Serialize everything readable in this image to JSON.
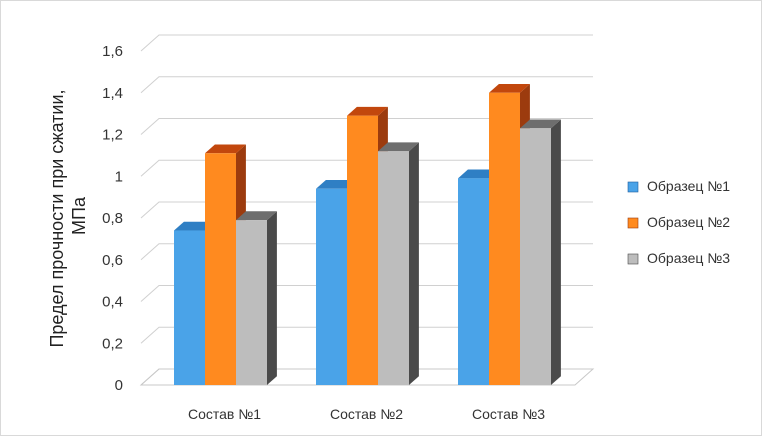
{
  "chart_data": {
    "type": "bar",
    "categories": [
      "Состав №1",
      "Состав №2",
      "Состав №3"
    ],
    "series": [
      {
        "name": "Образец №1",
        "values": [
          0.74,
          0.94,
          0.99
        ],
        "color": "#4aa3e8",
        "side_color": "#1f5f9e",
        "top_color": "#2f7fc4"
      },
      {
        "name": "Образец №2",
        "values": [
          1.11,
          1.29,
          1.4
        ],
        "color": "#ff8a1f",
        "side_color": "#9c3b0e",
        "top_color": "#c2470d"
      },
      {
        "name": "Образец №3",
        "values": [
          0.79,
          1.12,
          1.23
        ],
        "color": "#bdbdbd",
        "side_color": "#4a4a4a",
        "top_color": "#6e6e6e"
      }
    ],
    "ylabel_lines": [
      "Предел прочности при сжатии,",
      "МПа"
    ],
    "xlabel": "",
    "ylim": [
      0,
      1.6
    ],
    "yticks": [
      "0",
      "0,2",
      "0,4",
      "0,6",
      "0,8",
      "1",
      "1,2",
      "1,4",
      "1,6"
    ],
    "grid": true,
    "legend": "right"
  }
}
